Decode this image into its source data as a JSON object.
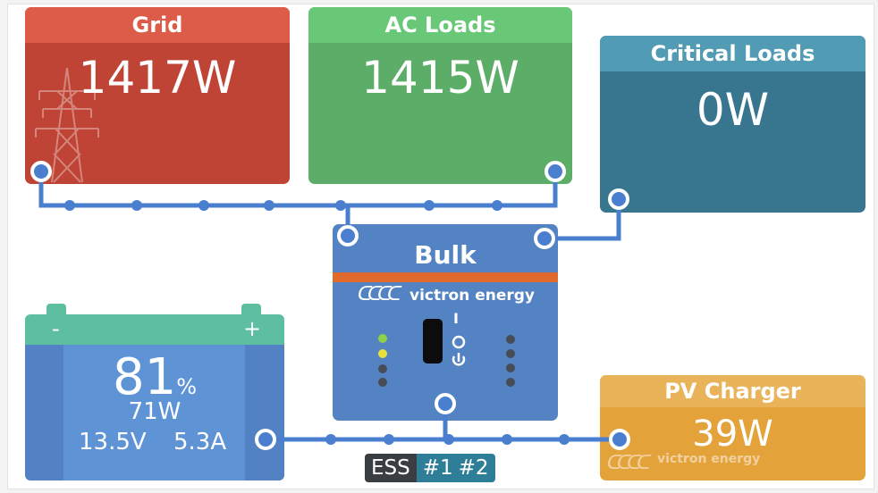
{
  "grid": {
    "title": "Grid",
    "power": "1417W"
  },
  "ac_loads": {
    "title": "AC Loads",
    "power": "1415W"
  },
  "critical_loads": {
    "title": "Critical Loads",
    "power": "0W"
  },
  "inverter": {
    "state": "Bulk",
    "brand": "victron energy",
    "switch_on_mark": "I"
  },
  "battery": {
    "minus": "-",
    "plus": "+",
    "soc_value": "81",
    "soc_unit": "%",
    "power": "71W",
    "voltage": "13.5V",
    "current": "5.3A"
  },
  "pv_charger": {
    "title": "PV Charger",
    "power": "39W",
    "brand": "victron energy"
  },
  "footer": {
    "ess": "ESS",
    "multi1": "#1",
    "multi2": "#2"
  },
  "colors": {
    "grid_red": "#bf4436",
    "ac_green": "#5cad67",
    "critical_teal": "#38768f",
    "pv_orange": "#e4a23b",
    "inverter_blue": "#5383c3",
    "battery_green": "#5dbfa0",
    "wire_blue": "#4a7fcf"
  },
  "icons": [
    "pylon-icon",
    "victron-logo-icon",
    "power-icon"
  ]
}
